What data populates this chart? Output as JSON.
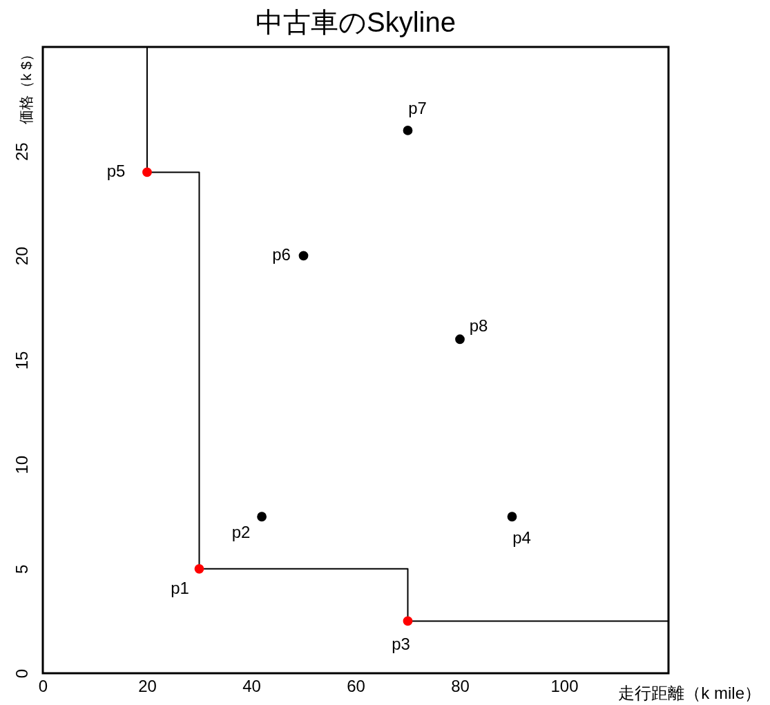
{
  "chart_data": {
    "type": "scatter",
    "title": "中古車のSkyline",
    "xlabel": "走行距離（k mile）",
    "ylabel": "価格（k $）",
    "xlim": [
      0,
      120
    ],
    "ylim": [
      0,
      30
    ],
    "xticks": [
      0,
      20,
      40,
      60,
      80,
      100
    ],
    "yticks": [
      0,
      5,
      10,
      15,
      20,
      25
    ],
    "grid": false,
    "series": [
      {
        "type": "line",
        "color": "#000000",
        "x": [
          20,
          20,
          30,
          30,
          70,
          70,
          120
        ],
        "values": [
          30,
          24,
          24,
          5,
          5,
          2.5,
          2.5
        ]
      },
      {
        "marker": "circle",
        "x": [
          30,
          42,
          70,
          90,
          20,
          50,
          70,
          80
        ],
        "values": [
          5,
          7.5,
          2.5,
          7.5,
          24,
          20,
          26,
          16
        ],
        "colors": [
          "#ff0000",
          "#000000",
          "#ff0000",
          "#000000",
          "#ff0000",
          "#000000",
          "#000000",
          "#000000"
        ]
      }
    ],
    "annotations": [
      {
        "text": "p1",
        "x": 30,
        "y": 5
      },
      {
        "text": "p2",
        "x": 42,
        "y": 7.5
      },
      {
        "text": "p3",
        "x": 70,
        "y": 2.5
      },
      {
        "text": "p4",
        "x": 90,
        "y": 7.5
      },
      {
        "text": "p5",
        "x": 20,
        "y": 24
      },
      {
        "text": "p6",
        "x": 50,
        "y": 20
      },
      {
        "text": "p7",
        "x": 70,
        "y": 26
      },
      {
        "text": "p8",
        "x": 80,
        "y": 16
      }
    ]
  }
}
